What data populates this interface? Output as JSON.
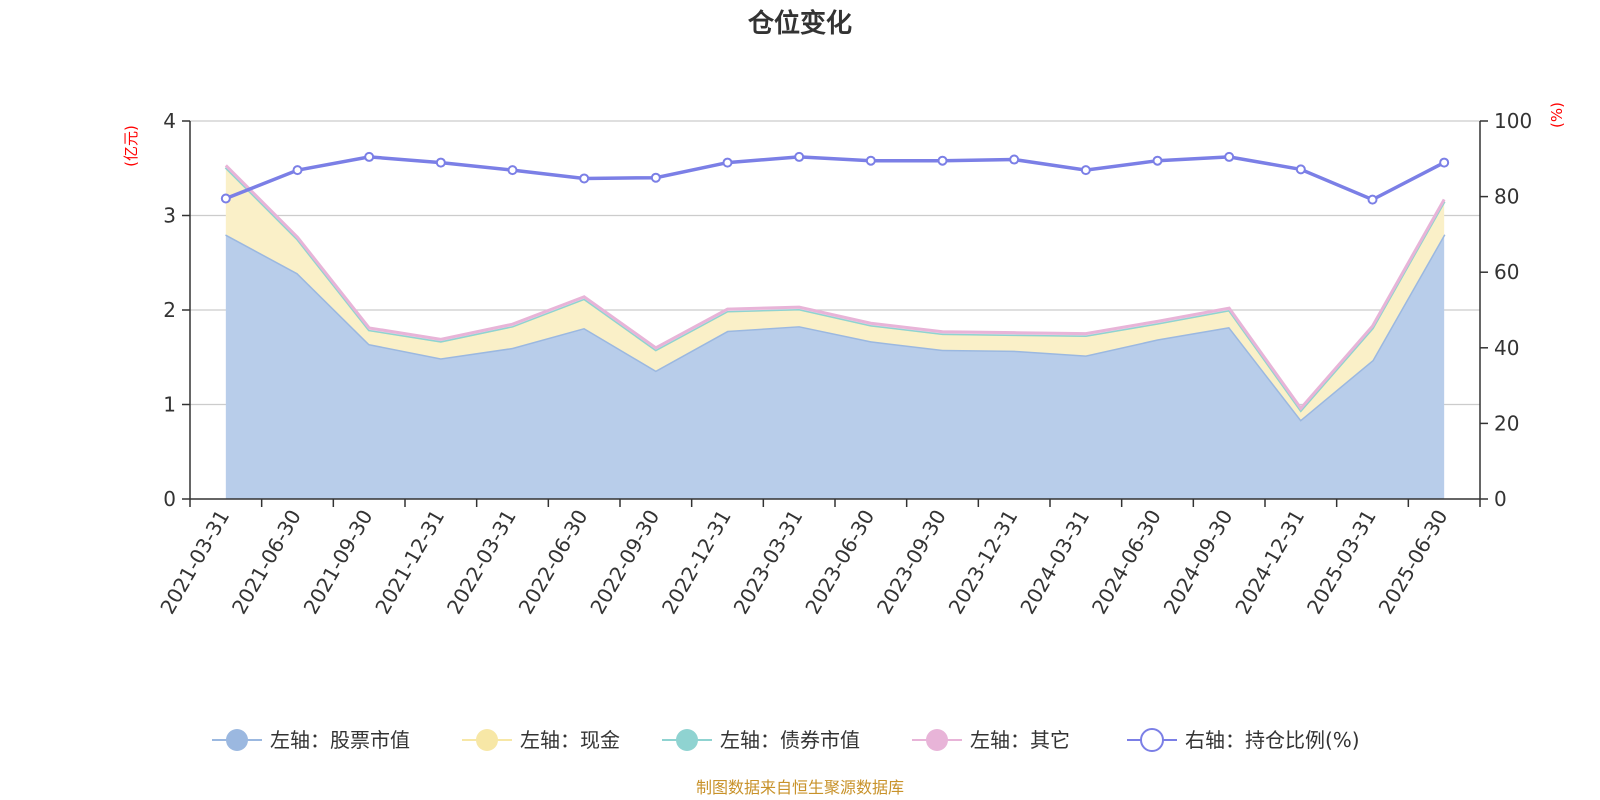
{
  "chart_data": {
    "type": "area",
    "title": "仓位变化",
    "left_axis_unit": "(亿元)",
    "right_axis_unit": "(%)",
    "categories": [
      "2021-03-31",
      "2021-06-30",
      "2021-09-30",
      "2021-12-31",
      "2022-03-31",
      "2022-06-30",
      "2022-09-30",
      "2022-12-31",
      "2023-03-31",
      "2023-06-30",
      "2023-09-30",
      "2023-12-31",
      "2024-03-31",
      "2024-06-30",
      "2024-09-30",
      "2024-12-31",
      "2025-03-31",
      "2025-06-30"
    ],
    "left_ylim": [
      0,
      4
    ],
    "left_yticks": [
      "0",
      "1",
      "2",
      "3",
      "4"
    ],
    "right_ylim": [
      0,
      100
    ],
    "right_yticks": [
      "0",
      "20",
      "40",
      "60",
      "80",
      "100"
    ],
    "grid": true,
    "legend_position": "bottom",
    "series": [
      {
        "name": "左轴：股票市值",
        "axis": "left",
        "color": "#9bb8e0",
        "fill": "#b8cdea",
        "values": [
          2.8,
          2.39,
          1.64,
          1.49,
          1.6,
          1.81,
          1.36,
          1.78,
          1.83,
          1.67,
          1.58,
          1.57,
          1.52,
          1.69,
          1.82,
          0.84,
          1.47,
          2.8
        ]
      },
      {
        "name": "左轴：现金",
        "axis": "left",
        "color": "#f7e7a6",
        "fill": "#faf0c8",
        "values": [
          0.71,
          0.36,
          0.15,
          0.18,
          0.23,
          0.31,
          0.22,
          0.21,
          0.18,
          0.17,
          0.17,
          0.17,
          0.21,
          0.17,
          0.18,
          0.1,
          0.34,
          0.35
        ]
      },
      {
        "name": "左轴：债券市值",
        "axis": "left",
        "color": "#8fd3d1",
        "fill": "#b6e3e1",
        "values": [
          0,
          0,
          0,
          0,
          0,
          0,
          0,
          0,
          0,
          0,
          0,
          0,
          0,
          0,
          0,
          0,
          0,
          0
        ]
      },
      {
        "name": "左轴：其它",
        "axis": "left",
        "color": "#e8b4d8",
        "fill": "#f3d6ea",
        "values": [
          0.02,
          0.02,
          0.02,
          0.02,
          0.02,
          0.02,
          0.02,
          0.02,
          0.02,
          0.02,
          0.02,
          0.02,
          0.02,
          0.02,
          0.02,
          0.02,
          0.02,
          0.02
        ]
      },
      {
        "name": "右轴：持仓比例(%)",
        "axis": "right",
        "color": "#7b7fe6",
        "values": [
          79.5,
          87.0,
          90.5,
          89.0,
          87.0,
          84.8,
          85.0,
          89.0,
          90.5,
          89.5,
          89.5,
          89.8,
          87.0,
          89.5,
          90.5,
          87.2,
          79.2,
          89.0
        ]
      }
    ],
    "source": "制图数据来自恒生聚源数据库"
  }
}
